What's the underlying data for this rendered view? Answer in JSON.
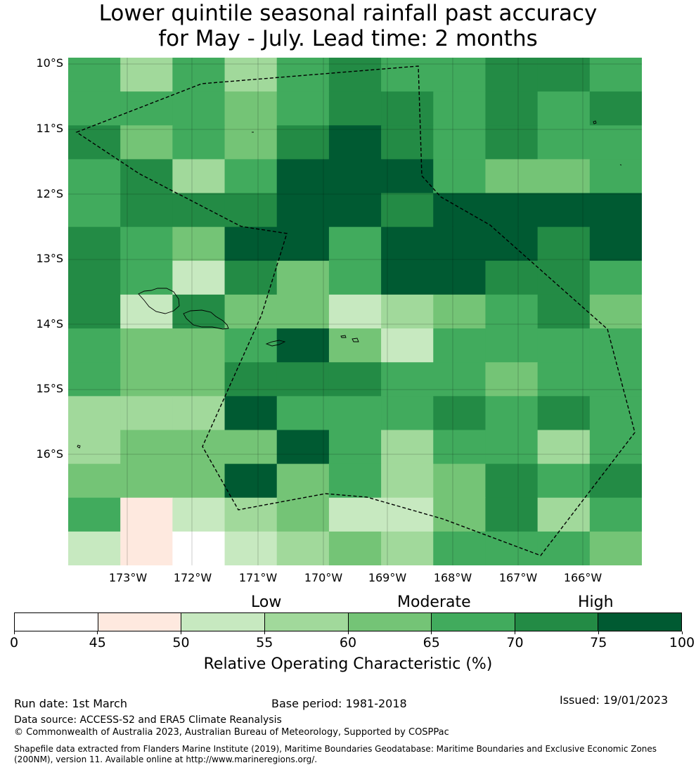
{
  "title": {
    "line1": "Lower quintile seasonal rainfall past accuracy",
    "line2": "for May - July. Lead time: 2 months"
  },
  "map": {
    "lat_labels": [
      "10°S",
      "11°S",
      "12°S",
      "13°S",
      "14°S",
      "15°S",
      "16°S"
    ],
    "lon_labels": [
      "173°W",
      "172°W",
      "171°W",
      "170°W",
      "169°W",
      "168°W",
      "167°W",
      "166°W"
    ],
    "grid_columns": 11,
    "grid_rows": 15,
    "color_scale": [
      "#ffffff",
      "#fee9df",
      "#c7e9c0",
      "#a1d99b",
      "#74c476",
      "#41ab5d",
      "#238b45",
      "#005a32"
    ],
    "cells": [
      [
        5,
        3,
        5,
        3,
        5,
        6,
        5,
        5,
        6,
        6,
        5
      ],
      [
        5,
        5,
        5,
        4,
        5,
        6,
        6,
        5,
        6,
        5,
        6
      ],
      [
        6,
        4,
        5,
        4,
        6,
        7,
        6,
        5,
        6,
        5,
        5
      ],
      [
        5,
        6,
        3,
        5,
        7,
        7,
        7,
        5,
        4,
        4,
        5
      ],
      [
        5,
        6,
        6,
        6,
        7,
        7,
        6,
        7,
        7,
        7,
        7
      ],
      [
        6,
        5,
        4,
        7,
        7,
        5,
        7,
        7,
        7,
        6,
        7
      ],
      [
        6,
        5,
        2,
        6,
        4,
        5,
        7,
        7,
        6,
        6,
        5
      ],
      [
        6,
        2,
        6,
        4,
        4,
        2,
        3,
        4,
        5,
        6,
        4
      ],
      [
        5,
        4,
        4,
        5,
        7,
        4,
        2,
        5,
        5,
        5,
        5
      ],
      [
        5,
        4,
        4,
        6,
        6,
        6,
        5,
        5,
        4,
        5,
        5
      ],
      [
        3,
        3,
        3,
        7,
        5,
        5,
        5,
        6,
        5,
        6,
        5
      ],
      [
        3,
        4,
        4,
        4,
        7,
        5,
        3,
        5,
        5,
        3,
        5
      ],
      [
        4,
        4,
        4,
        7,
        4,
        5,
        3,
        4,
        6,
        5,
        6
      ],
      [
        5,
        1,
        2,
        3,
        4,
        2,
        2,
        4,
        6,
        3,
        5
      ],
      [
        2,
        1,
        0,
        2,
        3,
        4,
        3,
        5,
        5,
        5,
        4
      ]
    ]
  },
  "legend": {
    "categories": [
      "Low",
      "Moderate",
      "High"
    ],
    "ticks": [
      "0",
      "45",
      "50",
      "55",
      "60",
      "65",
      "70",
      "75",
      "100"
    ],
    "colors": [
      "#ffffff",
      "#fee9df",
      "#c7e9c0",
      "#a1d99b",
      "#74c476",
      "#41ab5d",
      "#238b45",
      "#005a32"
    ],
    "label": "Relative Operating Characteristic (%)"
  },
  "footer": {
    "run_date": "Run date: 1st March",
    "base_period": "Base period: 1981-2018",
    "issued": "Issued: 19/01/2023",
    "data_source": "Data source: ACCESS-S2 and ERA5 Climate Reanalysis",
    "copyright": "© Commonwealth of Australia 2023, Australian Bureau of Meteorology, Supported by COSPPac",
    "shapefile_line1": "Shapefile data extracted from Flanders Marine Institute (2019), Maritime Boundaries Geodatabase: Maritime Boundaries and Exclusive Economic Zones",
    "shapefile_line2": "(200NM), version 11. Available online at http://www.marineregions.org/."
  }
}
